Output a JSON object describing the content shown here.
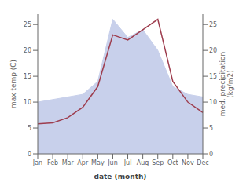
{
  "chart_data": {
    "type": "line",
    "xlabel": "date (month)",
    "ylabel": "max temp (C)",
    "y2label": "med. precipitation\n(kg/m2)",
    "categories": [
      "Jan",
      "Feb",
      "Mar",
      "Apr",
      "May",
      "Jun",
      "Jul",
      "Aug",
      "Sep",
      "Oct",
      "Nov",
      "Dec"
    ],
    "series": [
      {
        "type": "area",
        "color": "#c8d0eb",
        "values": [
          10.0,
          10.5,
          11.0,
          11.5,
          14.0,
          26.0,
          22.5,
          24.0,
          20.0,
          13.0,
          11.5,
          11.0
        ]
      },
      {
        "type": "line",
        "color": "#9e3d4e",
        "values": [
          5.8,
          6.0,
          7.0,
          9.0,
          13.0,
          23.0,
          22.0,
          24.0,
          26.0,
          14.0,
          10.0,
          8.0
        ]
      }
    ],
    "ylim": [
      0,
      27
    ],
    "yticks": [
      0,
      5,
      10,
      15,
      20,
      25
    ],
    "y2lim": [
      0,
      27
    ],
    "y2ticks": [
      0,
      5,
      10,
      15,
      20,
      25
    ],
    "grid": false
  }
}
